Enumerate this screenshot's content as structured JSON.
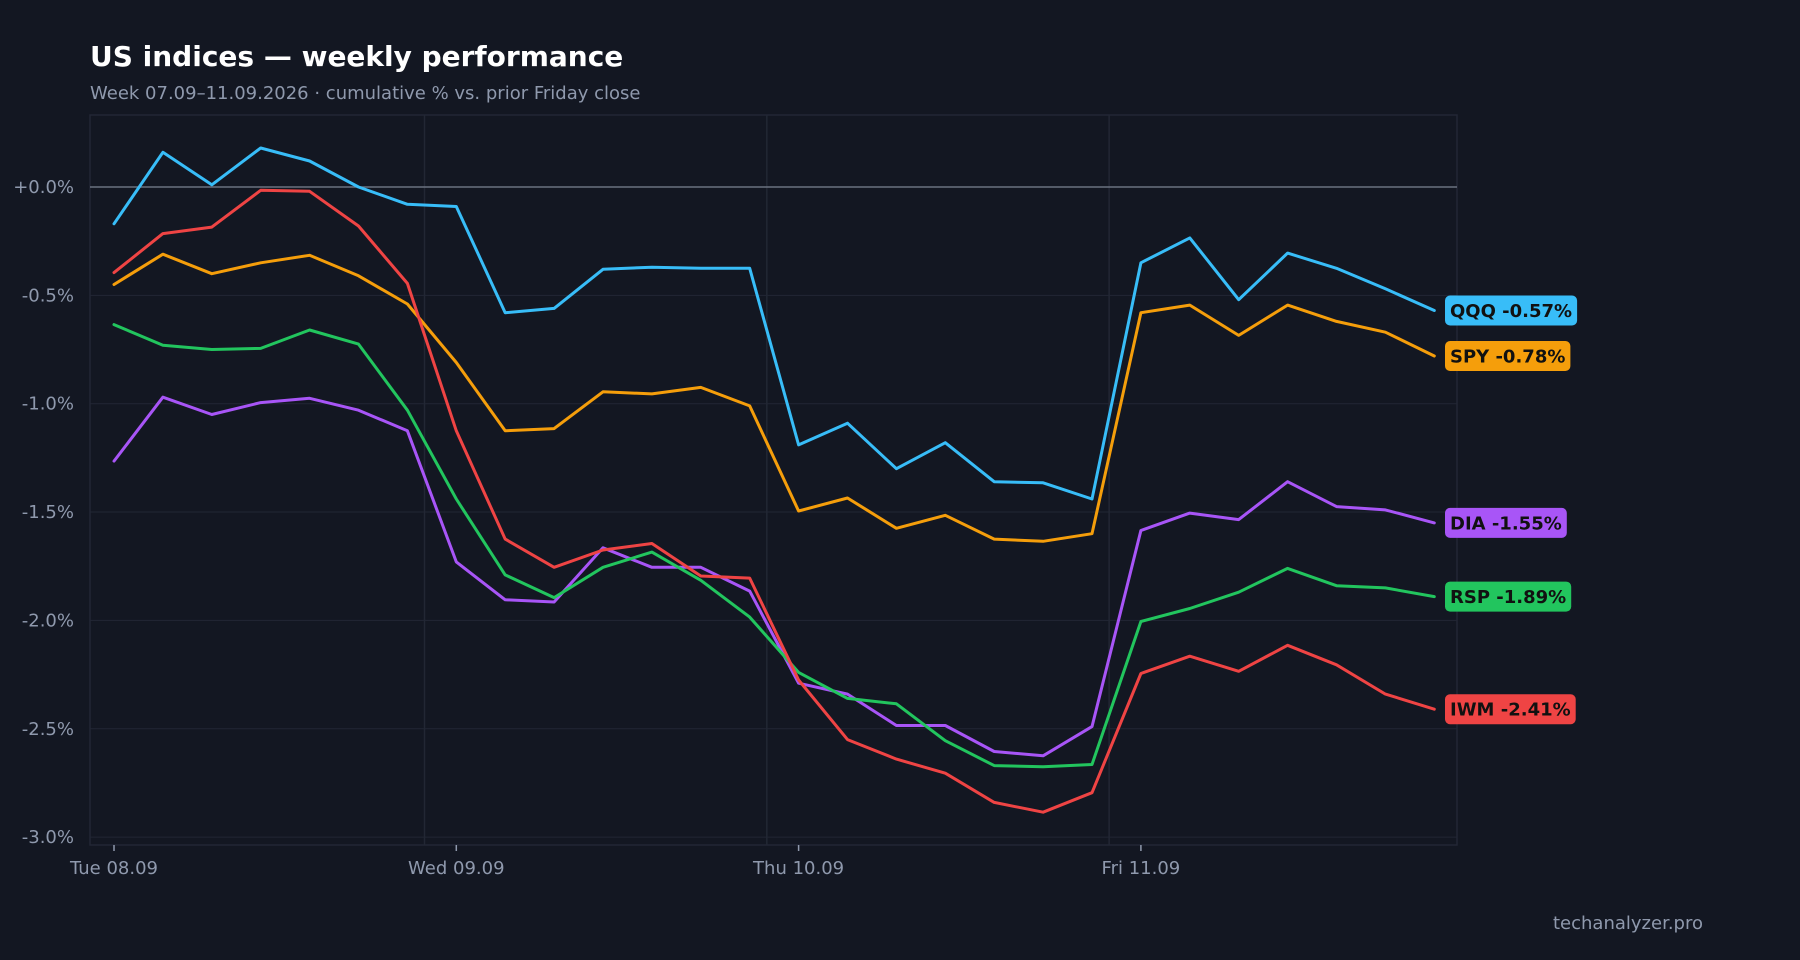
{
  "header": {
    "title": "US indices — weekly performance",
    "subtitle": "Week 07.09–11.09.2026 · cumulative % vs. prior Friday close"
  },
  "footer": {
    "watermark": "techanalyzer.pro"
  },
  "colors": {
    "background": "#131722",
    "grid": "#222734",
    "zero_line": "#6b7280",
    "tick_text": "#8f99ad"
  },
  "chart_data": {
    "type": "line",
    "title": "US indices — weekly performance",
    "subtitle": "Week 07.09–11.09.2026 · cumulative % vs. prior Friday close",
    "x_tick_labels": [
      "Tue 08.09",
      "Wed 09.09",
      "Thu 10.09",
      "Fri 11.09"
    ],
    "x_tick_index": [
      0,
      7,
      14,
      21
    ],
    "points_per_day": 7,
    "y_ticks": [
      0.0,
      -0.5,
      -1.0,
      -1.5,
      -2.0,
      -2.5,
      -3.0
    ],
    "y_tick_labels": [
      "+0.0%",
      "-0.5%",
      "-1.0%",
      "-1.5%",
      "-2.0%",
      "-2.5%",
      "-3.0%"
    ],
    "ylim": [
      -3.05,
      0.34
    ],
    "grid": true,
    "zero_line": true,
    "legend": "end-of-line labels",
    "series": [
      {
        "name": "QQQ",
        "color": "#38bdf8",
        "label": "QQQ -0.57%",
        "values": [
          -0.17,
          0.16,
          0.01,
          0.18,
          0.12,
          0.0,
          -0.08,
          -0.09,
          -0.58,
          -0.56,
          -0.38,
          -0.37,
          -0.375,
          -0.375,
          -1.19,
          -1.09,
          -1.3,
          -1.18,
          -1.36,
          -1.365,
          -1.44,
          -0.35,
          -0.235,
          -0.52,
          -0.305,
          -0.375,
          -0.47,
          -0.57
        ]
      },
      {
        "name": "SPY",
        "color": "#f59e0b",
        "label": "SPY -0.78%",
        "values": [
          -0.45,
          -0.31,
          -0.4,
          -0.35,
          -0.315,
          -0.41,
          -0.54,
          -0.81,
          -1.125,
          -1.115,
          -0.945,
          -0.955,
          -0.925,
          -1.01,
          -1.495,
          -1.435,
          -1.575,
          -1.515,
          -1.625,
          -1.635,
          -1.6,
          -0.58,
          -0.545,
          -0.685,
          -0.545,
          -0.62,
          -0.67,
          -0.78
        ]
      },
      {
        "name": "DIA",
        "color": "#a855f7",
        "label": "DIA -1.55%",
        "values": [
          -1.265,
          -0.97,
          -1.05,
          -0.995,
          -0.975,
          -1.03,
          -1.125,
          -1.73,
          -1.905,
          -1.915,
          -1.665,
          -1.755,
          -1.755,
          -1.865,
          -2.29,
          -2.34,
          -2.485,
          -2.485,
          -2.605,
          -2.625,
          -2.49,
          -1.585,
          -1.505,
          -1.535,
          -1.36,
          -1.475,
          -1.49,
          -1.55
        ]
      },
      {
        "name": "RSP",
        "color": "#22c55e",
        "label": "RSP -1.89%",
        "values": [
          -0.635,
          -0.73,
          -0.75,
          -0.745,
          -0.66,
          -0.725,
          -1.03,
          -1.44,
          -1.79,
          -1.895,
          -1.755,
          -1.685,
          -1.815,
          -1.985,
          -2.24,
          -2.36,
          -2.385,
          -2.555,
          -2.67,
          -2.675,
          -2.665,
          -2.005,
          -1.945,
          -1.87,
          -1.76,
          -1.84,
          -1.85,
          -1.89
        ]
      },
      {
        "name": "IWM",
        "color": "#ef4444",
        "label": "IWM -2.41%",
        "values": [
          -0.395,
          -0.215,
          -0.185,
          -0.015,
          -0.02,
          -0.18,
          -0.445,
          -1.125,
          -1.625,
          -1.755,
          -1.675,
          -1.645,
          -1.795,
          -1.805,
          -2.275,
          -2.55,
          -2.64,
          -2.705,
          -2.84,
          -2.885,
          -2.795,
          -2.245,
          -2.165,
          -2.235,
          -2.115,
          -2.205,
          -2.34,
          -2.41
        ]
      }
    ]
  }
}
